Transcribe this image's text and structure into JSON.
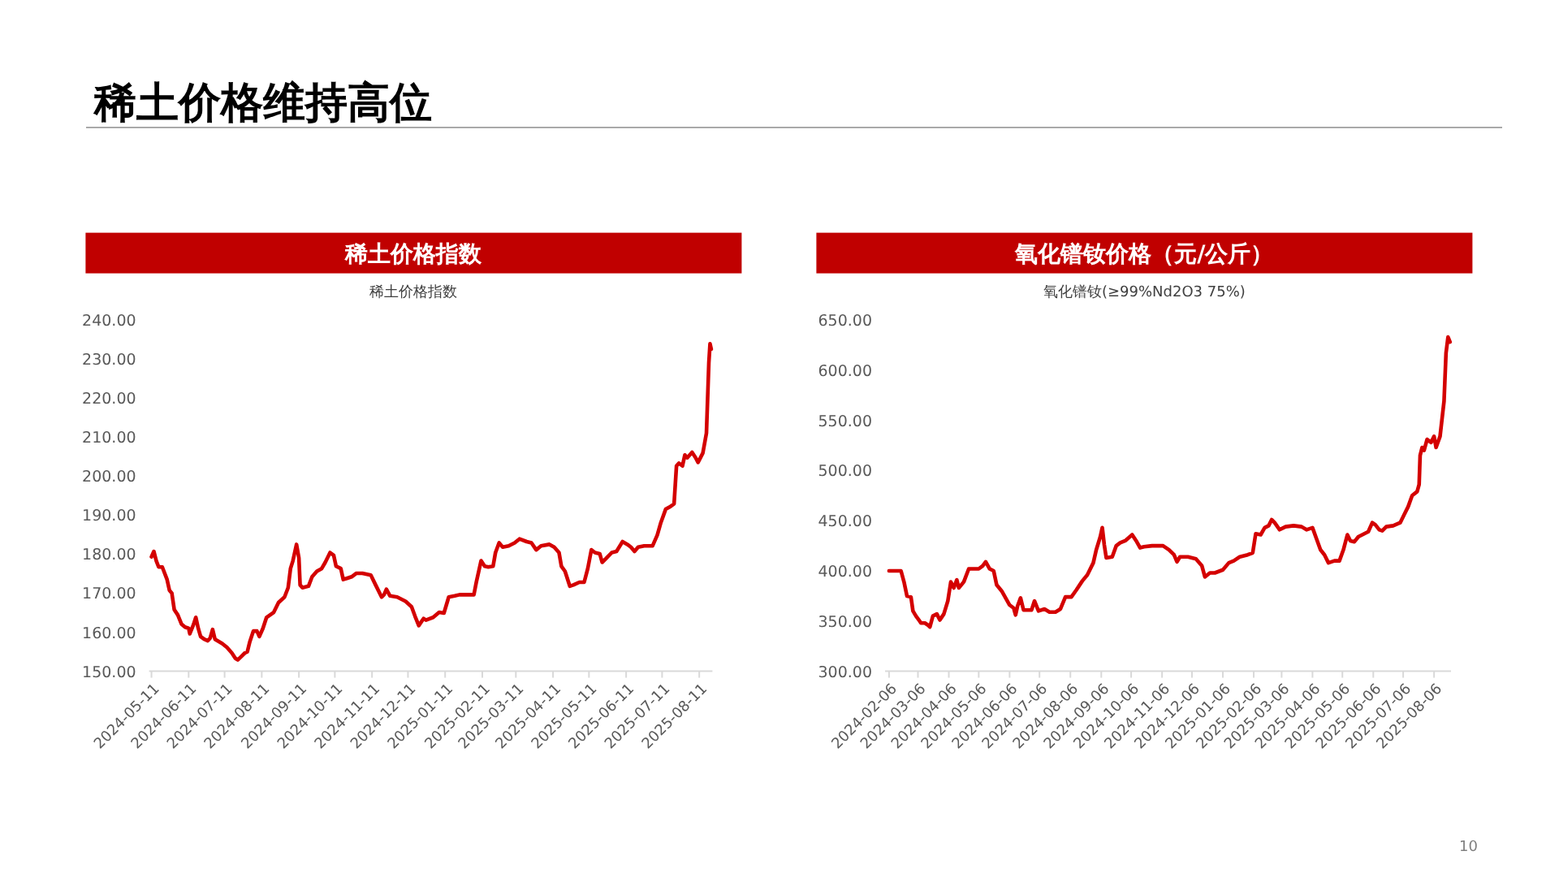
{
  "chart_data": [
    {
      "type": "line",
      "title": "稀土价格指数",
      "subtitle": "稀土价格指数",
      "annotations": [
        "稀土价格维持高位"
      ],
      "x": [
        "2024-05-11",
        "2024-05-13",
        "2024-05-15",
        "2024-05-17",
        "2024-05-20",
        "2024-05-24",
        "2024-05-26",
        "2024-05-28",
        "2024-05-30",
        "2024-06-02",
        "2024-06-05",
        "2024-06-08",
        "2024-06-11",
        "2024-06-12",
        "2024-06-15",
        "2024-06-17",
        "2024-06-19",
        "2024-06-21",
        "2024-06-24",
        "2024-06-27",
        "2024-06-29",
        "2024-07-01",
        "2024-07-03",
        "2024-07-09",
        "2024-07-13",
        "2024-07-17",
        "2024-07-20",
        "2024-07-22",
        "2024-07-25",
        "2024-07-28",
        "2024-07-30",
        "2024-08-01",
        "2024-08-04",
        "2024-08-07",
        "2024-08-09",
        "2024-08-12",
        "2024-08-15",
        "2024-08-21",
        "2024-08-25",
        "2024-08-30",
        "2024-09-02",
        "2024-09-04",
        "2024-09-06",
        "2024-09-09",
        "2024-09-11",
        "2024-09-12",
        "2024-09-14",
        "2024-09-19",
        "2024-09-22",
        "2024-09-26",
        "2024-09-30",
        "2024-10-03",
        "2024-10-07",
        "2024-10-10",
        "2024-10-12",
        "2024-10-16",
        "2024-10-18",
        "2024-10-21",
        "2024-10-25",
        "2024-10-29",
        "2024-11-03",
        "2024-11-10",
        "2024-11-14",
        "2024-11-19",
        "2024-11-21",
        "2024-11-23",
        "2024-11-26",
        "2024-12-02",
        "2024-12-09",
        "2024-12-14",
        "2024-12-17",
        "2024-12-20",
        "2024-12-24",
        "2024-12-26",
        "2025-01-01",
        "2025-01-06",
        "2025-01-10",
        "2025-01-14",
        "2025-01-19",
        "2025-01-23",
        "2025-02-04",
        "2025-02-06",
        "2025-02-10",
        "2025-02-13",
        "2025-02-16",
        "2025-02-20",
        "2025-02-22",
        "2025-02-25",
        "2025-02-28",
        "2025-03-05",
        "2025-03-10",
        "2025-03-14",
        "2025-03-20",
        "2025-03-24",
        "2025-03-28",
        "2025-04-01",
        "2025-04-08",
        "2025-04-12",
        "2025-04-16",
        "2025-04-18",
        "2025-04-21",
        "2025-04-25",
        "2025-04-28",
        "2025-05-03",
        "2025-05-07",
        "2025-05-10",
        "2025-05-13",
        "2025-05-16",
        "2025-05-20",
        "2025-05-22",
        "2025-05-25",
        "2025-05-30",
        "2025-06-03",
        "2025-06-08",
        "2025-06-12",
        "2025-06-15",
        "2025-06-18",
        "2025-06-21",
        "2025-06-26",
        "2025-07-03",
        "2025-07-07",
        "2025-07-10",
        "2025-07-14",
        "2025-07-18",
        "2025-07-21",
        "2025-07-23",
        "2025-07-25",
        "2025-07-28",
        "2025-07-30",
        "2025-08-01",
        "2025-08-05",
        "2025-08-08",
        "2025-08-10",
        "2025-08-14",
        "2025-08-17",
        "2025-08-19",
        "2025-08-20",
        "2025-08-21"
      ],
      "series": [
        {
          "color": "#d40000",
          "line_style": "solid",
          "values": [
            179.3,
            180.7,
            178.3,
            176.7,
            176.7,
            173.5,
            170.7,
            170.0,
            165.8,
            164.4,
            162.1,
            161.3,
            161.0,
            159.6,
            161.9,
            163.8,
            161.0,
            158.9,
            158.2,
            157.8,
            158.5,
            160.7,
            158.2,
            157.1,
            156.1,
            154.7,
            153.3,
            152.9,
            153.8,
            154.7,
            155.0,
            157.5,
            160.3,
            160.3,
            158.9,
            161.0,
            163.8,
            165.1,
            167.6,
            169.0,
            171.4,
            176.3,
            178.3,
            182.5,
            179.0,
            172.1,
            171.4,
            171.8,
            174.2,
            175.6,
            176.3,
            177.9,
            180.4,
            179.7,
            176.9,
            176.3,
            173.5,
            173.8,
            174.2,
            175.1,
            175.1,
            174.6,
            172.1,
            169.0,
            169.6,
            171.0,
            169.3,
            169.0,
            167.9,
            166.5,
            164.0,
            161.7,
            163.5,
            163.1,
            163.8,
            165.1,
            164.9,
            169.0,
            169.3,
            169.6,
            169.6,
            172.8,
            178.3,
            176.9,
            176.7,
            176.9,
            180.4,
            182.9,
            181.8,
            182.1,
            182.9,
            183.9,
            183.2,
            182.9,
            181.1,
            182.1,
            182.5,
            181.8,
            180.4,
            176.9,
            175.6,
            171.8,
            172.1,
            172.8,
            172.8,
            176.3,
            181.1,
            180.4,
            180.1,
            177.9,
            178.8,
            180.4,
            180.7,
            183.2,
            182.5,
            181.8,
            180.7,
            181.8,
            182.1,
            182.1,
            184.9,
            188.1,
            191.5,
            192.2,
            192.9,
            202.6,
            203.3,
            202.6,
            205.4,
            204.7,
            206.1,
            204.7,
            203.5,
            205.9,
            211.0,
            229.0,
            233.9,
            232.5
          ]
        }
      ],
      "xlim": [
        "2024-05-09",
        "2025-08-22"
      ],
      "xticks": [
        {
          "value": "2024-05-11",
          "label": "2024-05-11"
        },
        {
          "value": "2024-06-11",
          "label": "2024-06-11"
        },
        {
          "value": "2024-07-11",
          "label": "2024-07-11"
        },
        {
          "value": "2024-08-11",
          "label": "2024-08-11"
        },
        {
          "value": "2024-09-11",
          "label": "2024-09-11"
        },
        {
          "value": "2024-10-11",
          "label": "2024-10-11"
        },
        {
          "value": "2024-11-11",
          "label": "2024-11-11"
        },
        {
          "value": "2024-12-11",
          "label": "2024-12-11"
        },
        {
          "value": "2025-01-11",
          "label": "2025-01-11"
        },
        {
          "value": "2025-02-11",
          "label": "2025-02-11"
        },
        {
          "value": "2025-03-11",
          "label": "2025-03-11"
        },
        {
          "value": "2025-04-11",
          "label": "2025-04-11"
        },
        {
          "value": "2025-05-11",
          "label": "2025-05-11"
        },
        {
          "value": "2025-06-11",
          "label": "2025-06-11"
        },
        {
          "value": "2025-07-11",
          "label": "2025-07-11"
        },
        {
          "value": "2025-08-11",
          "label": "2025-08-11"
        }
      ],
      "ylim": [
        150,
        240
      ],
      "yticks": [
        {
          "value": 150,
          "label": "150.00"
        },
        {
          "value": 160,
          "label": "160.00"
        },
        {
          "value": 170,
          "label": "170.00"
        },
        {
          "value": 180,
          "label": "180.00"
        },
        {
          "value": 190,
          "label": "190.00"
        },
        {
          "value": 200,
          "label": "200.00"
        },
        {
          "value": 210,
          "label": "210.00"
        },
        {
          "value": 220,
          "label": "220.00"
        },
        {
          "value": 230,
          "label": "230.00"
        },
        {
          "value": 240,
          "label": "240.00"
        }
      ]
    },
    {
      "type": "line",
      "title": "氧化镨钕价格（元/公斤）",
      "subtitle": "氧化镨钕(≥99%Nd2O3 75%)",
      "annotations": [
        "10"
      ],
      "x": [
        "2024-02-06",
        "2024-02-18",
        "2024-02-21",
        "2024-02-24",
        "2024-02-28",
        "2024-03-01",
        "2024-03-04",
        "2024-03-07",
        "2024-03-09",
        "2024-03-13",
        "2024-03-16",
        "2024-03-18",
        "2024-03-21",
        "2024-03-25",
        "2024-03-28",
        "2024-04-01",
        "2024-04-05",
        "2024-04-08",
        "2024-04-11",
        "2024-04-14",
        "2024-04-16",
        "2024-04-21",
        "2024-04-26",
        "2024-05-01",
        "2024-05-06",
        "2024-05-10",
        "2024-05-13",
        "2024-05-17",
        "2024-05-21",
        "2024-05-24",
        "2024-05-29",
        "2024-06-02",
        "2024-06-06",
        "2024-06-10",
        "2024-06-12",
        "2024-06-14",
        "2024-06-17",
        "2024-06-20",
        "2024-06-28",
        "2024-07-01",
        "2024-07-05",
        "2024-07-11",
        "2024-07-16",
        "2024-07-22",
        "2024-07-27",
        "2024-08-01",
        "2024-08-07",
        "2024-08-12",
        "2024-08-18",
        "2024-08-23",
        "2024-08-29",
        "2024-09-01",
        "2024-09-05",
        "2024-09-07",
        "2024-09-09",
        "2024-09-11",
        "2024-09-17",
        "2024-09-21",
        "2024-09-25",
        "2024-09-30",
        "2024-10-07",
        "2024-10-11",
        "2024-10-15",
        "2024-10-19",
        "2024-10-27",
        "2024-11-07",
        "2024-11-13",
        "2024-11-18",
        "2024-11-21",
        "2024-11-24",
        "2024-12-02",
        "2024-12-10",
        "2024-12-16",
        "2024-12-19",
        "2024-12-24",
        "2024-12-29",
        "2025-01-06",
        "2025-01-12",
        "2025-01-17",
        "2025-01-23",
        "2025-01-31",
        "2025-02-05",
        "2025-02-08",
        "2025-02-13",
        "2025-02-17",
        "2025-02-21",
        "2025-02-24",
        "2025-02-27",
        "2025-03-04",
        "2025-03-10",
        "2025-03-18",
        "2025-03-26",
        "2025-03-31",
        "2025-04-06",
        "2025-04-10",
        "2025-04-14",
        "2025-04-18",
        "2025-04-22",
        "2025-04-28",
        "2025-05-03",
        "2025-05-07",
        "2025-05-11",
        "2025-05-14",
        "2025-05-18",
        "2025-05-22",
        "2025-05-28",
        "2025-06-01",
        "2025-06-05",
        "2025-06-08",
        "2025-06-12",
        "2025-06-15",
        "2025-06-19",
        "2025-06-26",
        "2025-07-03",
        "2025-07-07",
        "2025-07-11",
        "2025-07-15",
        "2025-07-20",
        "2025-07-22",
        "2025-07-23",
        "2025-07-25",
        "2025-07-27",
        "2025-07-30",
        "2025-08-03",
        "2025-08-06",
        "2025-08-08",
        "2025-08-12",
        "2025-08-16",
        "2025-08-18",
        "2025-08-20",
        "2025-08-22"
      ],
      "series": [
        {
          "color": "#d40000",
          "line_style": "solid",
          "values": [
            400,
            400,
            389,
            375,
            374,
            360,
            355,
            351,
            348,
            348,
            346,
            344,
            355,
            357,
            351,
            357,
            370,
            389,
            383,
            391,
            383,
            389,
            402,
            402,
            402,
            405,
            409,
            402,
            400,
            386,
            380,
            373,
            366,
            363,
            356,
            365,
            373,
            361,
            361,
            370,
            360,
            362,
            359,
            359,
            362,
            374,
            374,
            381,
            390,
            396,
            408,
            421,
            434,
            443,
            426,
            413,
            414,
            425,
            428,
            430,
            436,
            430,
            423,
            424,
            425,
            425,
            421,
            416,
            409,
            414,
            414,
            412,
            405,
            394,
            398,
            398,
            401,
            408,
            410,
            414,
            416,
            418,
            437,
            436,
            443,
            445,
            451,
            448,
            441,
            444,
            445,
            444,
            441,
            443,
            432,
            421,
            416,
            408,
            410,
            410,
            421,
            436,
            430,
            429,
            434,
            437,
            439,
            448,
            446,
            441,
            440,
            444,
            445,
            448,
            456,
            464,
            475,
            479,
            486,
            515,
            523,
            520,
            531,
            528,
            534,
            523,
            534,
            569,
            617,
            633,
            628
          ]
        }
      ],
      "xlim": [
        "2024-02-02",
        "2025-08-23"
      ],
      "xticks": [
        {
          "value": "2024-02-06",
          "label": "2024-02-06"
        },
        {
          "value": "2024-03-06",
          "label": "2024-03-06"
        },
        {
          "value": "2024-04-06",
          "label": "2024-04-06"
        },
        {
          "value": "2024-05-06",
          "label": "2024-05-06"
        },
        {
          "value": "2024-06-06",
          "label": "2024-06-06"
        },
        {
          "value": "2024-07-06",
          "label": "2024-07-06"
        },
        {
          "value": "2024-08-06",
          "label": "2024-08-06"
        },
        {
          "value": "2024-09-06",
          "label": "2024-09-06"
        },
        {
          "value": "2024-10-06",
          "label": "2024-10-06"
        },
        {
          "value": "2024-11-06",
          "label": "2024-11-06"
        },
        {
          "value": "2024-12-06",
          "label": "2024-12-06"
        },
        {
          "value": "2025-01-06",
          "label": "2025-01-06"
        },
        {
          "value": "2025-02-06",
          "label": "2025-02-06"
        },
        {
          "value": "2025-03-06",
          "label": "2025-03-06"
        },
        {
          "value": "2025-04-06",
          "label": "2025-04-06"
        },
        {
          "value": "2025-05-06",
          "label": "2025-05-06"
        },
        {
          "value": "2025-06-06",
          "label": "2025-06-06"
        },
        {
          "value": "2025-07-06",
          "label": "2025-07-06"
        },
        {
          "value": "2025-08-06",
          "label": "2025-08-06"
        }
      ],
      "ylim": [
        300,
        650
      ],
      "yticks": [
        {
          "value": 300,
          "label": "300.00"
        },
        {
          "value": 350,
          "label": "350.00"
        },
        {
          "value": 400,
          "label": "400.00"
        },
        {
          "value": 450,
          "label": "450.00"
        },
        {
          "value": 500,
          "label": "500.00"
        },
        {
          "value": 550,
          "label": "550.00"
        },
        {
          "value": 600,
          "label": "600.00"
        },
        {
          "value": 650,
          "label": "650.00"
        }
      ]
    }
  ]
}
